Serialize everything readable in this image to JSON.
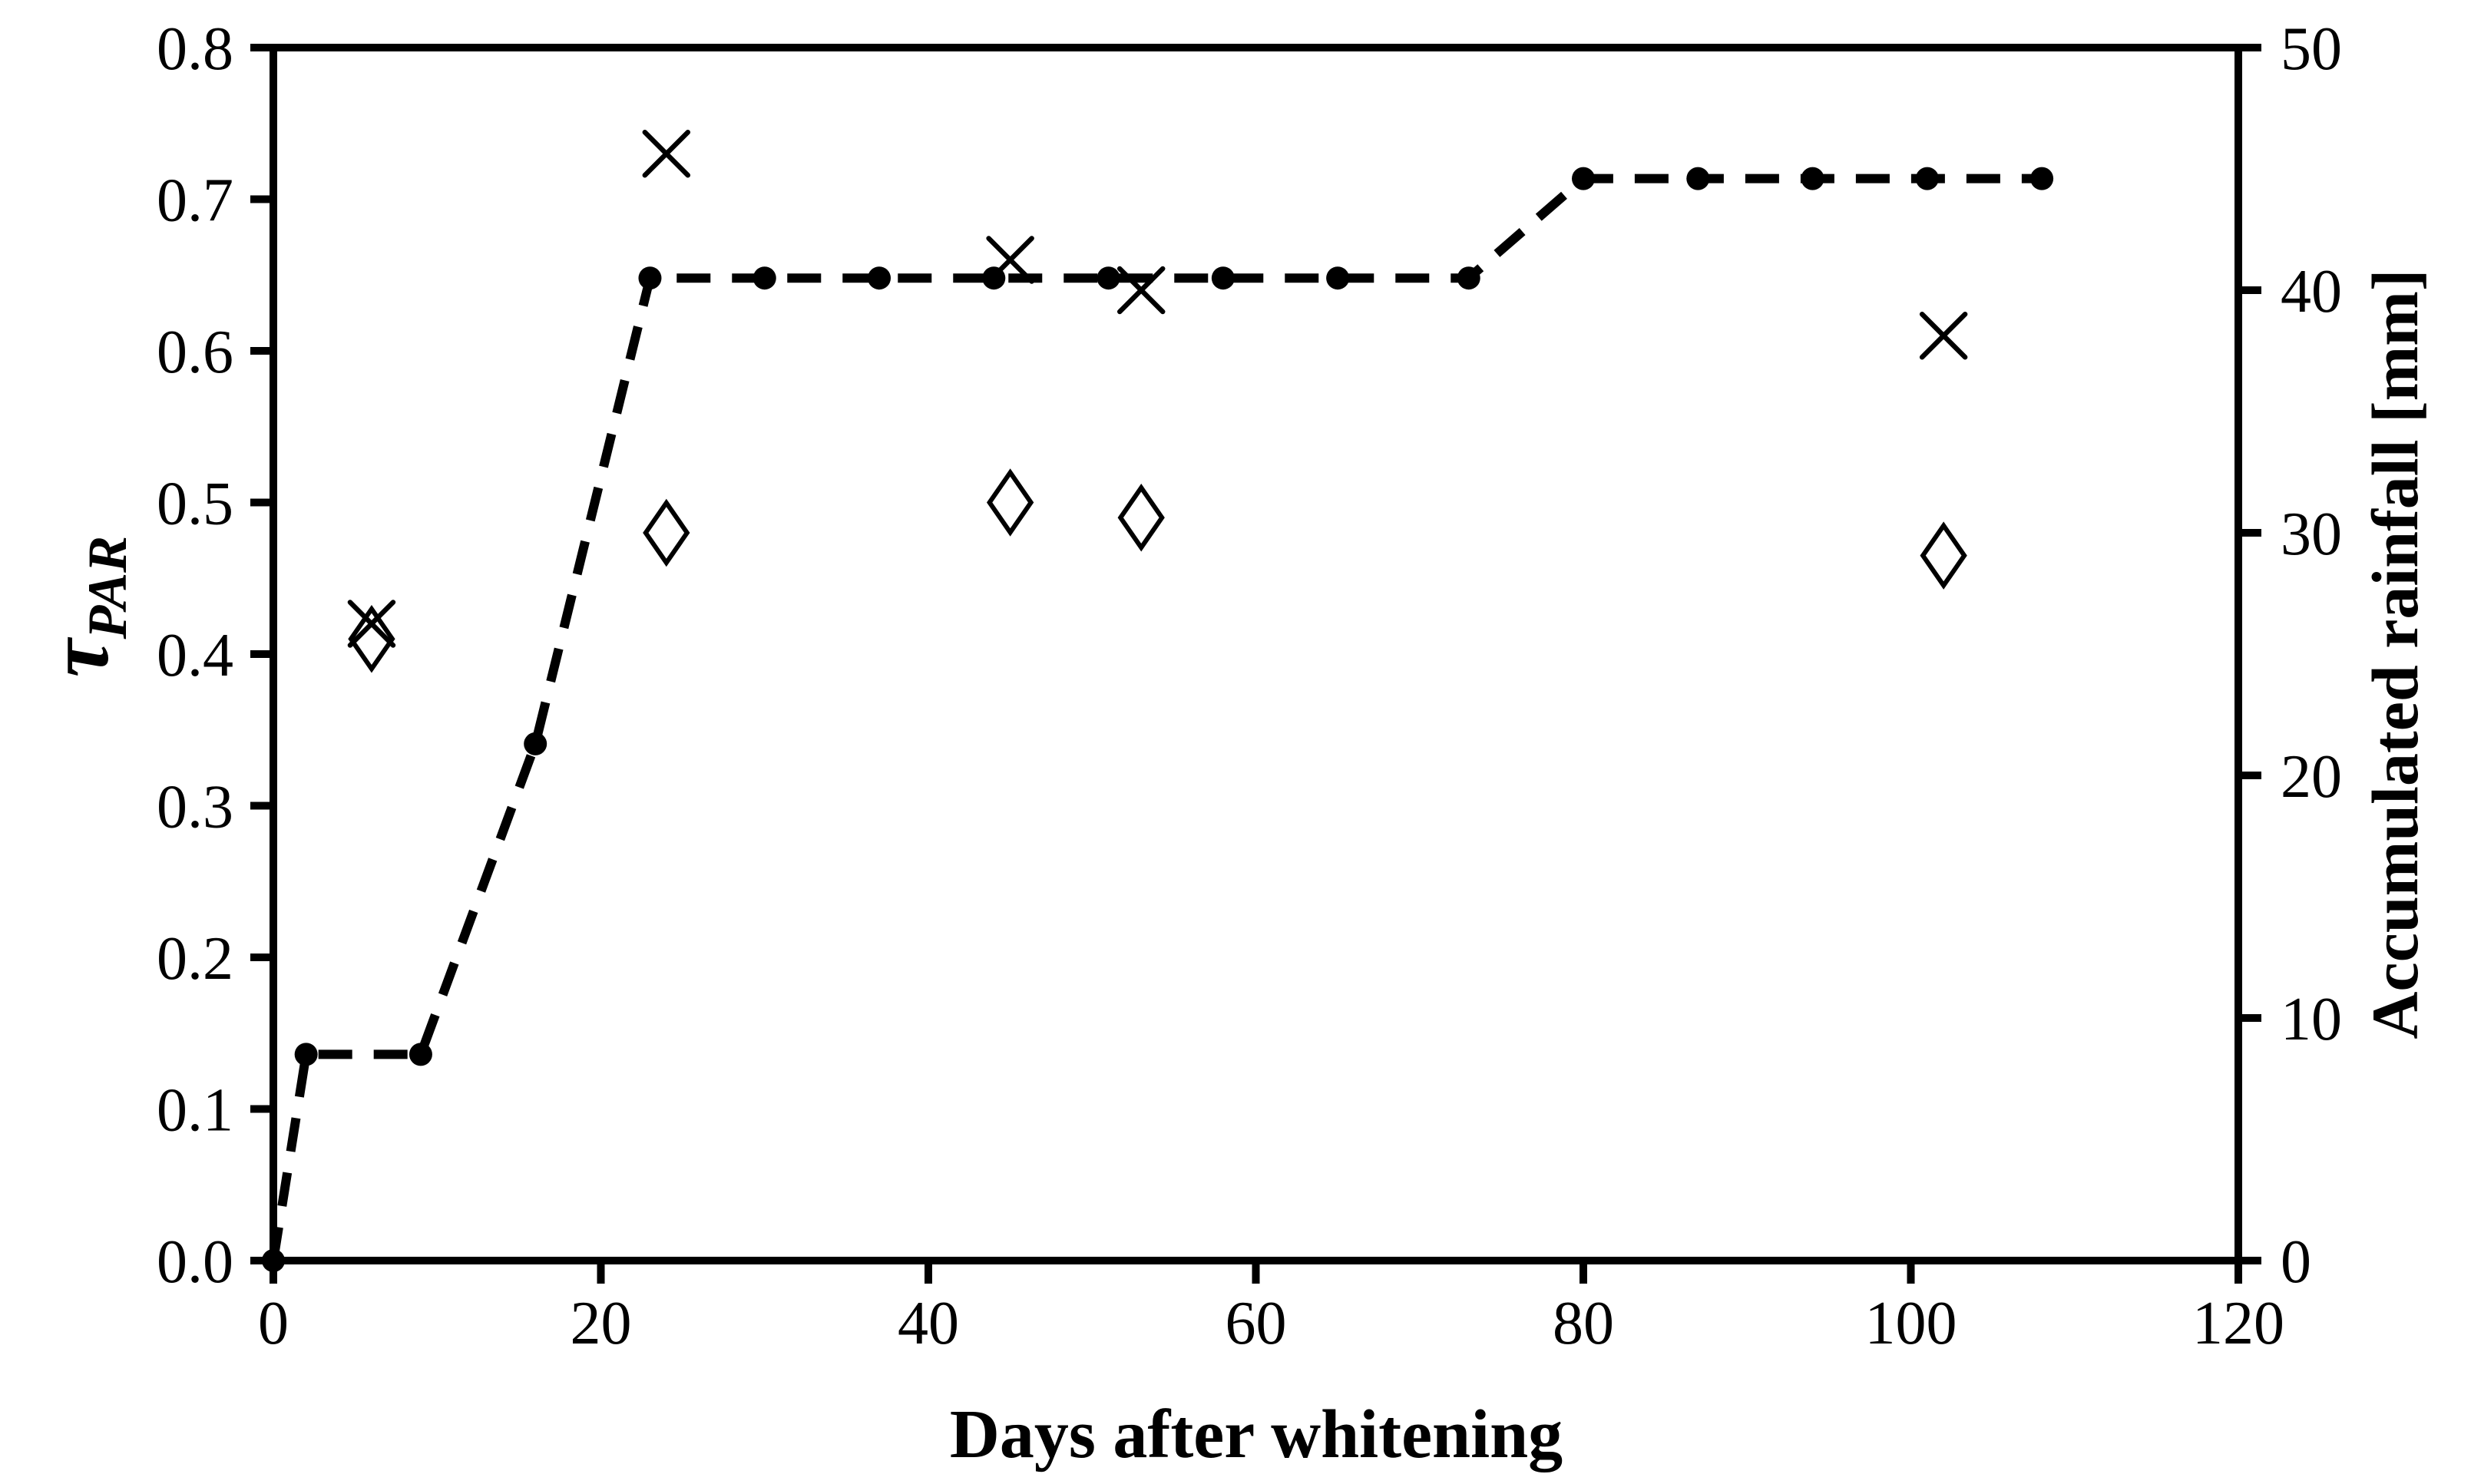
{
  "chart_data": {
    "type": "line",
    "title": "",
    "background_color": "#ffffff",
    "foreground_color": "#000000",
    "grid": false,
    "legend": "none",
    "x_axis": {
      "label": "Days after whitening",
      "range": [
        0,
        120
      ],
      "ticks": [
        0,
        20,
        40,
        60,
        80,
        100,
        120
      ],
      "tick_labels": [
        "0",
        "20",
        "40",
        "60",
        "80",
        "100",
        "120"
      ]
    },
    "y_axis_left": {
      "label_symbol": "τ",
      "label_sub": "PAR",
      "range": [
        0,
        0.8
      ],
      "ticks": [
        0,
        0.1,
        0.2,
        0.3,
        0.4,
        0.5,
        0.6,
        0.7,
        0.8
      ],
      "tick_labels": [
        "0.0",
        "0.1",
        "0.2",
        "0.3",
        "0.4",
        "0.5",
        "0.6",
        "0.7",
        "0.8"
      ]
    },
    "y_axis_right": {
      "label": "Accumulated rainfall [mm]",
      "range": [
        0,
        50
      ],
      "ticks": [
        0,
        10,
        20,
        30,
        40,
        50
      ],
      "tick_labels": [
        "0",
        "10",
        "20",
        "30",
        "40",
        "50"
      ]
    },
    "series": [
      {
        "name": "Accumulated rainfall",
        "axis": "right",
        "type": "line",
        "line_style": "dashed",
        "marker": "filled-circle",
        "x": [
          0,
          2,
          9,
          16,
          23,
          30,
          37,
          44,
          51,
          58,
          65,
          73,
          80,
          87,
          94,
          101,
          108
        ],
        "values": [
          0,
          8.5,
          8.5,
          21.3,
          40.5,
          40.5,
          40.5,
          40.5,
          40.5,
          40.5,
          40.5,
          40.5,
          44.6,
          44.6,
          44.6,
          44.6,
          44.6
        ]
      },
      {
        "name": "tau PAR (x markers)",
        "axis": "left",
        "type": "scatter",
        "line_style": "none",
        "marker": "x",
        "x": [
          6,
          24,
          45,
          53,
          102
        ],
        "values": [
          0.42,
          0.73,
          0.66,
          0.64,
          0.61
        ]
      },
      {
        "name": "tau PAR (diamond markers)",
        "axis": "left",
        "type": "scatter",
        "line_style": "none",
        "marker": "open-diamond",
        "x": [
          6,
          24,
          45,
          53,
          102
        ],
        "values": [
          0.41,
          0.48,
          0.5,
          0.49,
          0.465
        ]
      }
    ]
  }
}
